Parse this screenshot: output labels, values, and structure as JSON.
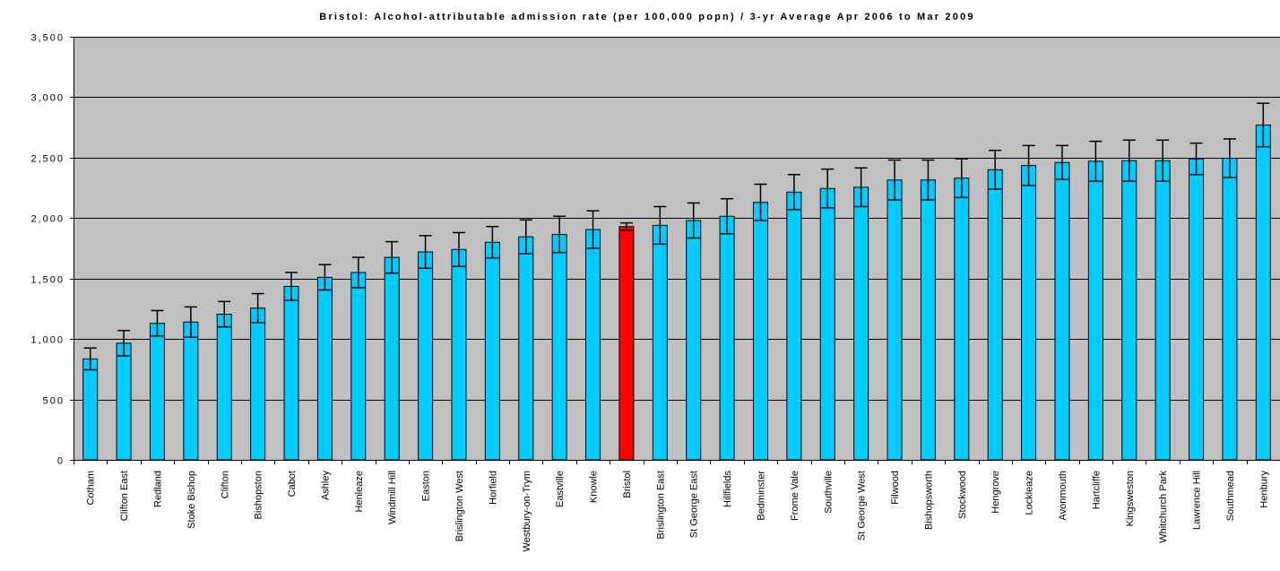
{
  "chart_data": {
    "type": "bar",
    "title": "Bristol: Alcohol-attributable admission rate (per 100,000 popn) / 3-yr Average Apr 2006 to Mar 2009",
    "xlabel": "",
    "ylabel": "",
    "ylim": [
      0,
      3500
    ],
    "yticks": [
      0,
      500,
      1000,
      1500,
      2000,
      2500,
      3000,
      3500
    ],
    "ytick_labels": [
      "0",
      "500",
      "1,000",
      "1,500",
      "2,000",
      "2,500",
      "3,000",
      "3,500"
    ],
    "grid": true,
    "legend": "none",
    "colors": {
      "bar": "#00ccff",
      "highlight": "#ff0000",
      "plot_background": "#c0c0c0",
      "gridline": "#000000",
      "error_bar": "#000000"
    },
    "highlight_category": "Bristol",
    "categories": [
      "Cotham",
      "Clifton East",
      "Redland",
      "Stoke Bishop",
      "Clifton",
      "Bishopston",
      "Cabot",
      "Ashley",
      "Henleaze",
      "Windmill Hill",
      "Easton",
      "Brislington West",
      "Horfield",
      "Westbury-on-Trym",
      "Eastville",
      "Knowle",
      "Bristol",
      "Brislington East",
      "St George East",
      "Hillfields",
      "Bedminster",
      "Frome Vale",
      "Southville",
      "St George West",
      "Filwood",
      "Bishopsworth",
      "Stockwood",
      "Hengrove",
      "Lockleaze",
      "Avonmouth",
      "Hartcliffe",
      "Kingsweston",
      "Whitchurch Park",
      "Lawrence Hill",
      "Southmead",
      "Henbury"
    ],
    "values": [
      835,
      965,
      1130,
      1140,
      1205,
      1255,
      1435,
      1510,
      1550,
      1675,
      1720,
      1740,
      1800,
      1845,
      1865,
      1905,
      1930,
      1940,
      1980,
      2015,
      2130,
      2215,
      2245,
      2255,
      2315,
      2315,
      2330,
      2400,
      2435,
      2460,
      2470,
      2475,
      2475,
      2490,
      2495,
      2770
    ],
    "error_upper": [
      925,
      1070,
      1235,
      1265,
      1310,
      1375,
      1550,
      1615,
      1675,
      1805,
      1855,
      1880,
      1930,
      1985,
      2015,
      2060,
      1960,
      2095,
      2125,
      2160,
      2280,
      2360,
      2405,
      2415,
      2480,
      2480,
      2490,
      2560,
      2600,
      2600,
      2635,
      2645,
      2645,
      2620,
      2655,
      2950
    ],
    "error_lower": [
      745,
      860,
      1025,
      1015,
      1100,
      1135,
      1320,
      1405,
      1425,
      1545,
      1585,
      1600,
      1670,
      1705,
      1715,
      1750,
      1900,
      1785,
      1835,
      1870,
      1980,
      2070,
      2085,
      2095,
      2150,
      2150,
      2170,
      2240,
      2270,
      2320,
      2305,
      2305,
      2305,
      2360,
      2335,
      2590
    ]
  }
}
